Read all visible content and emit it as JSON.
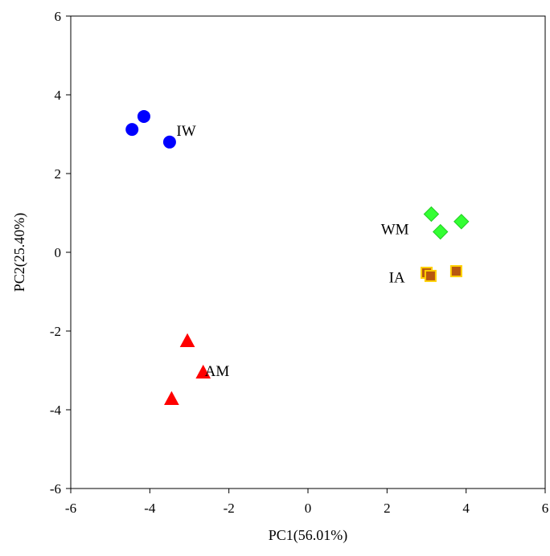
{
  "chart_data": {
    "type": "scatter",
    "title": "",
    "xlabel": "PC1(56.01%)",
    "ylabel": "PC2(25.40%)",
    "xlim": [
      -6,
      6
    ],
    "ylim": [
      -6,
      6
    ],
    "xticks": [
      "-6",
      "-4",
      "-2",
      "0",
      "2",
      "4",
      "6"
    ],
    "yticks": [
      "-6",
      "-4",
      "-2",
      "0",
      "2",
      "4",
      "6"
    ],
    "grid": false,
    "legend": "none",
    "series": [
      {
        "label": "IW",
        "marker": "circle",
        "color": "#0000ff",
        "edge": "#0000ff",
        "points": [
          [
            -4.45,
            3.12
          ],
          [
            -4.15,
            3.45
          ],
          [
            -3.5,
            2.8
          ]
        ],
        "label_at": [
          -3.08,
          3.1
        ]
      },
      {
        "label": "WM",
        "marker": "diamond",
        "color": "#33ff33",
        "edge": "#22cc22",
        "points": [
          [
            3.12,
            0.97
          ],
          [
            3.35,
            0.52
          ],
          [
            3.88,
            0.78
          ]
        ],
        "label_at": [
          2.2,
          0.6
        ]
      },
      {
        "label": "IA",
        "marker": "square",
        "color": "#b8570f",
        "edge": "#ffd000",
        "points": [
          [
            3.0,
            -0.52
          ],
          [
            3.1,
            -0.6
          ],
          [
            3.75,
            -0.48
          ]
        ],
        "label_at": [
          2.25,
          -0.62
        ]
      },
      {
        "label": "AM",
        "marker": "triangle",
        "color": "#ff0000",
        "edge": "#ff0000",
        "points": [
          [
            -3.05,
            -2.25
          ],
          [
            -2.65,
            -3.05
          ],
          [
            -3.45,
            -3.72
          ]
        ],
        "label_at": [
          -2.3,
          -3.0
        ]
      }
    ]
  }
}
